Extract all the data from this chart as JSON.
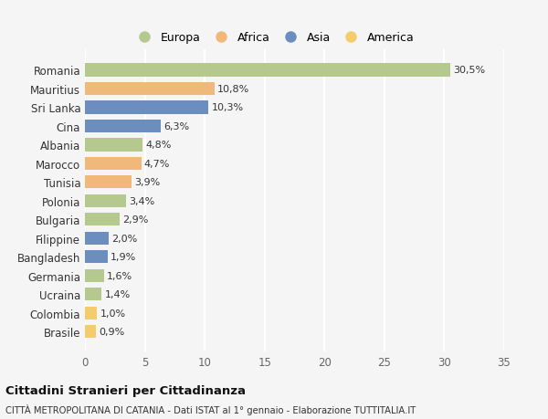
{
  "countries": [
    "Romania",
    "Mauritius",
    "Sri Lanka",
    "Cina",
    "Albania",
    "Marocco",
    "Tunisia",
    "Polonia",
    "Bulgaria",
    "Filippine",
    "Bangladesh",
    "Germania",
    "Ucraina",
    "Colombia",
    "Brasile"
  ],
  "values": [
    30.5,
    10.8,
    10.3,
    6.3,
    4.8,
    4.7,
    3.9,
    3.4,
    2.9,
    2.0,
    1.9,
    1.6,
    1.4,
    1.0,
    0.9
  ],
  "labels": [
    "30,5%",
    "10,8%",
    "10,3%",
    "6,3%",
    "4,8%",
    "4,7%",
    "3,9%",
    "3,4%",
    "2,9%",
    "2,0%",
    "1,9%",
    "1,6%",
    "1,4%",
    "1,0%",
    "0,9%"
  ],
  "colors": [
    "#b5c98e",
    "#f0b97a",
    "#6b8ebf",
    "#6b8ebf",
    "#b5c98e",
    "#f0b97a",
    "#f0b97a",
    "#b5c98e",
    "#b5c98e",
    "#6b8ebf",
    "#6b8ebf",
    "#b5c98e",
    "#b5c98e",
    "#f5cc6b",
    "#f5cc6b"
  ],
  "legend_labels": [
    "Europa",
    "Africa",
    "Asia",
    "America"
  ],
  "legend_colors": [
    "#b5c98e",
    "#f0b97a",
    "#6b8ebf",
    "#f5cc6b"
  ],
  "xlim": [
    0,
    35
  ],
  "xticks": [
    0,
    5,
    10,
    15,
    20,
    25,
    30,
    35
  ],
  "title": "Cittadini Stranieri per Cittadinanza",
  "subtitle": "CITTÀ METROPOLITANA DI CATANIA - Dati ISTAT al 1° gennaio - Elaborazione TUTTITALIA.IT",
  "bg_color": "#f5f5f5",
  "plot_bg_color": "#f5f5f5",
  "grid_color": "#ffffff",
  "bar_height": 0.7,
  "label_fontsize": 8.0,
  "ytick_fontsize": 8.5,
  "xtick_fontsize": 8.5
}
